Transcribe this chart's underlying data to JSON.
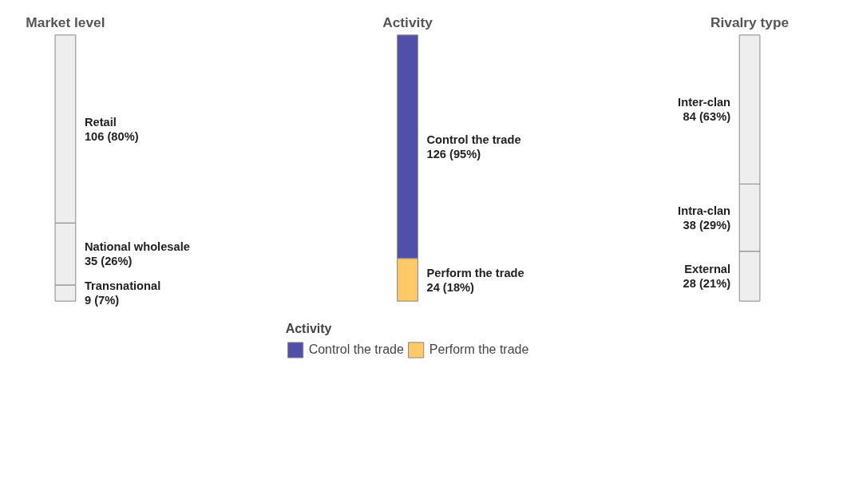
{
  "chart_data": {
    "type": "other",
    "legend_title": "Activity",
    "annotations": [
      "Market level",
      "Activity",
      "Rivalry type"
    ],
    "categories": [
      "Retail",
      "National wholesale",
      "Transnational",
      "Control the trade",
      "Perform the trade",
      "Inter-clan",
      "Intra-clan",
      "External"
    ],
    "series": [
      {
        "color": "#eeeeee",
        "values": [
          106,
          35,
          9,
          null,
          null,
          null,
          null,
          null
        ],
        "value_labels": [
          "106 (80%)",
          "35 (26%)",
          "9 (7%)",
          null,
          null,
          null,
          null,
          null
        ]
      },
      {
        "values": [
          null,
          null,
          null,
          126,
          24,
          null,
          null,
          null
        ],
        "value_labels": [
          null,
          null,
          null,
          "126 (95%)",
          "24 (18%)",
          null,
          null,
          null
        ],
        "colors": [
          null,
          null,
          null,
          "#5050a8",
          "#ffc966",
          null,
          null,
          null
        ]
      },
      {
        "color": "#eeeeee",
        "values": [
          null,
          null,
          null,
          null,
          null,
          84,
          38,
          28
        ],
        "value_labels": [
          null,
          null,
          null,
          null,
          null,
          "84 (63%)",
          "38 (29%)",
          "28 (21%)"
        ]
      }
    ]
  }
}
